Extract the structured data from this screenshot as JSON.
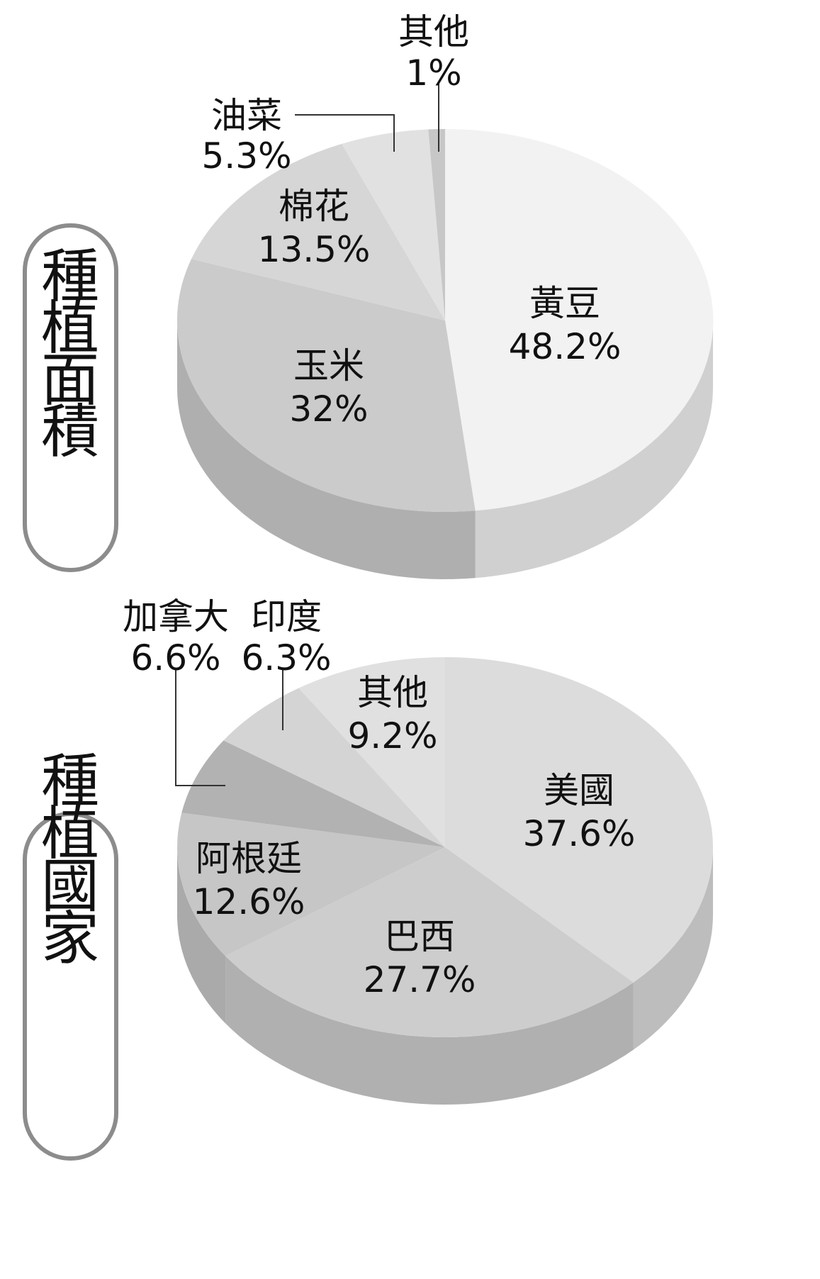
{
  "chart_data": [
    {
      "type": "pie",
      "title": "種植面積",
      "categories": [
        "黃豆",
        "玉米",
        "棉花",
        "油菜",
        "其他"
      ],
      "values": [
        48.2,
        32,
        13.5,
        5.3,
        1
      ],
      "labels": [
        "48.2%",
        "32%",
        "13.5%",
        "5.3%",
        "1%"
      ],
      "colors": [
        "#f2f2f2",
        "#cbcbcb",
        "#d6d6d6",
        "#e1e1e1",
        "#c7c7c7"
      ]
    },
    {
      "type": "pie",
      "title": "種植國家",
      "categories": [
        "美國",
        "巴西",
        "阿根廷",
        "加拿大",
        "印度",
        "其他"
      ],
      "values": [
        37.6,
        27.7,
        12.6,
        6.6,
        6.3,
        9.2
      ],
      "labels": [
        "37.6%",
        "27.7%",
        "12.6%",
        "6.6%",
        "6.3%",
        "9.2%"
      ],
      "colors": [
        "#dcdcdc",
        "#cdcdcd",
        "#c6c6c6",
        "#b2b2b2",
        "#d4d4d4",
        "#e0e0e0"
      ]
    }
  ]
}
